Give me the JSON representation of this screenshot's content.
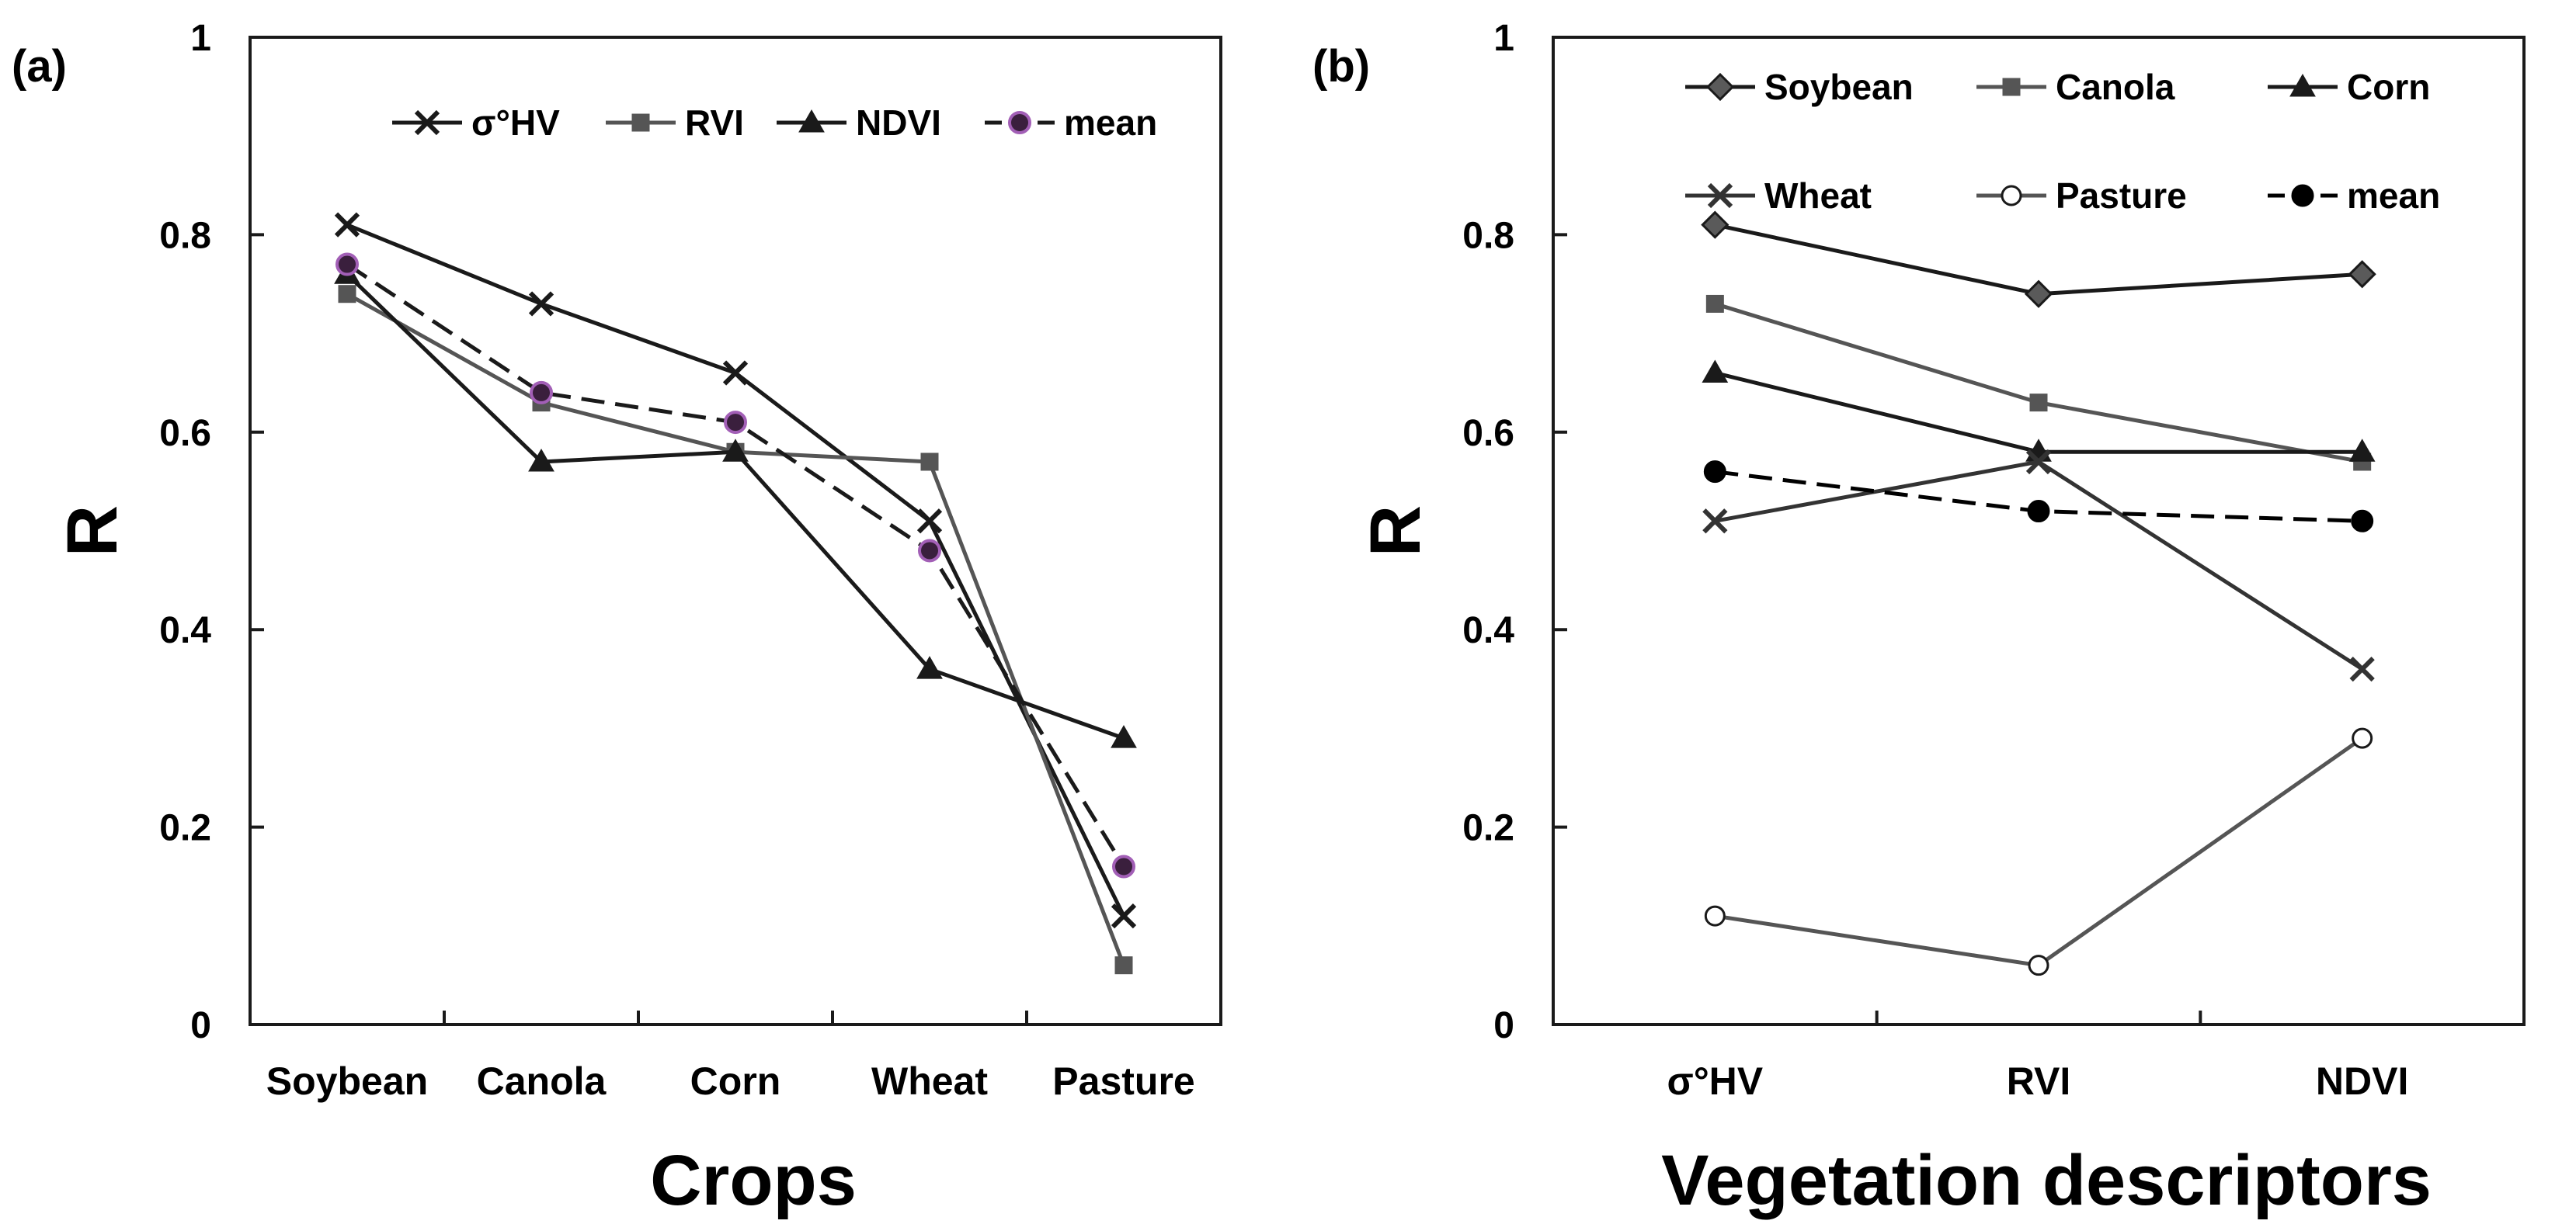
{
  "chart_data": [
    {
      "type": "line",
      "panel_label": "(a)",
      "xlabel": "Crops",
      "ylabel": "R",
      "categories": [
        "Soybean",
        "Canola",
        "Corn",
        "Wheat",
        "Pasture"
      ],
      "ylim": [
        0,
        1
      ],
      "yticks": [
        "0",
        "0.2",
        "0.4",
        "0.6",
        "0.8",
        "1"
      ],
      "ytick_values": [
        0,
        0.2,
        0.4,
        0.6,
        0.8,
        1
      ],
      "grid": false,
      "legend": "top",
      "series": [
        {
          "name": "σ°HV",
          "values": [
            0.81,
            0.73,
            0.66,
            0.51,
            0.11
          ],
          "color": "#1a1a1a",
          "marker": "x",
          "dash": false
        },
        {
          "name": "RVI",
          "values": [
            0.74,
            0.63,
            0.58,
            0.57,
            0.06
          ],
          "color": "#555555",
          "marker": "square",
          "dash": false
        },
        {
          "name": "NDVI",
          "values": [
            0.76,
            0.57,
            0.58,
            0.36,
            0.29
          ],
          "color": "#1a1a1a",
          "marker": "triangle",
          "dash": false
        },
        {
          "name": "mean",
          "values": [
            0.77,
            0.64,
            0.61,
            0.48,
            0.16
          ],
          "color": "#1a1a1a",
          "marker": "circle-purple",
          "dash": true
        }
      ]
    },
    {
      "type": "line",
      "panel_label": "(b)",
      "xlabel": "Vegetation descriptors",
      "ylabel": "R",
      "categories": [
        "σ°HV",
        "RVI",
        "NDVI"
      ],
      "ylim": [
        0,
        1
      ],
      "yticks": [
        "0",
        "0.2",
        "0.4",
        "0.6",
        "0.8",
        "1"
      ],
      "ytick_values": [
        0,
        0.2,
        0.4,
        0.6,
        0.8,
        1
      ],
      "grid": false,
      "legend": "top",
      "series": [
        {
          "name": "Soybean",
          "values": [
            0.81,
            0.74,
            0.76
          ],
          "color": "#1a1a1a",
          "marker": "diamond",
          "dash": false
        },
        {
          "name": "Canola",
          "values": [
            0.73,
            0.63,
            0.57
          ],
          "color": "#555555",
          "marker": "square",
          "dash": false
        },
        {
          "name": "Corn",
          "values": [
            0.66,
            0.58,
            0.58
          ],
          "color": "#1a1a1a",
          "marker": "triangle",
          "dash": false
        },
        {
          "name": "Wheat",
          "values": [
            0.51,
            0.57,
            0.36
          ],
          "color": "#333333",
          "marker": "x",
          "dash": false
        },
        {
          "name": "Pasture",
          "values": [
            0.11,
            0.06,
            0.29
          ],
          "color": "#555555",
          "marker": "open-circle",
          "dash": false
        },
        {
          "name": "mean",
          "values": [
            0.56,
            0.52,
            0.51
          ],
          "color": "#000000",
          "marker": "filled-circle",
          "dash": true
        }
      ]
    }
  ]
}
